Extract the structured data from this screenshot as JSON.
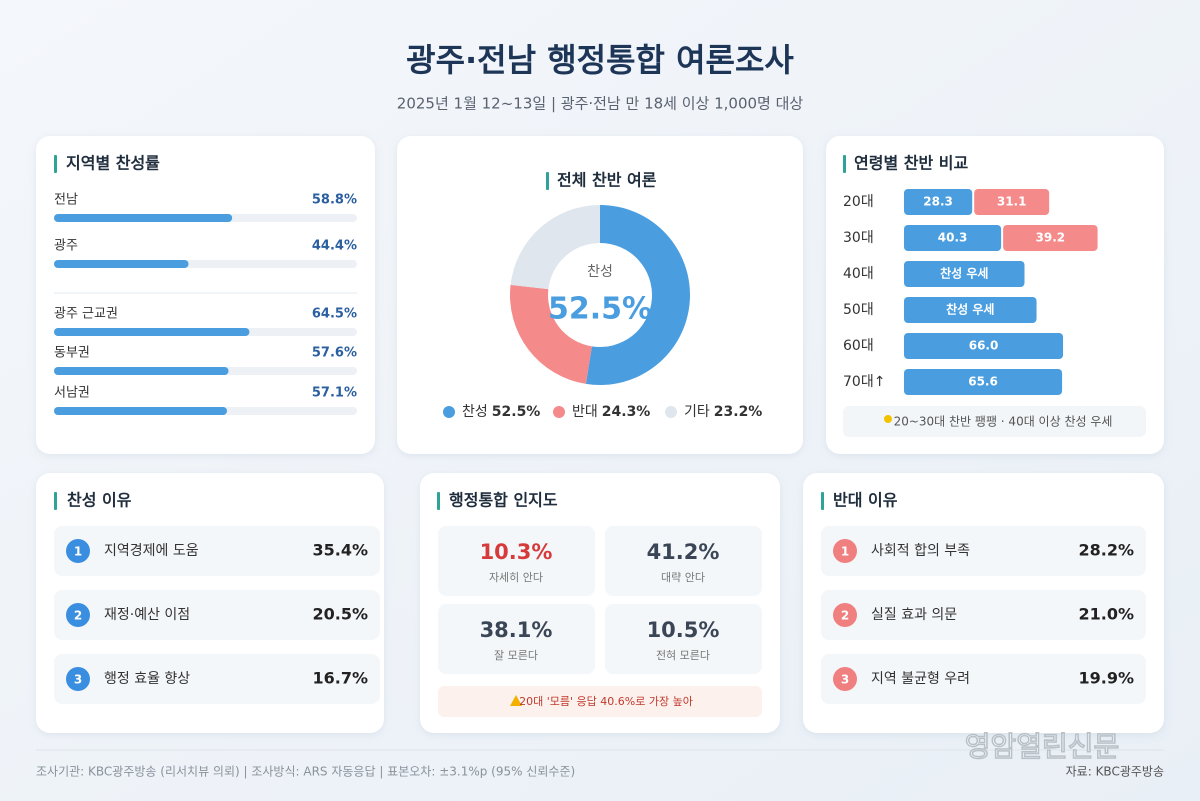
{
  "header": {
    "title": "광주·전남 행정통합 여론조사",
    "subtitle": "2025년 1월 12~13일 | 광주·전남 만 18세 이상 1,000명 대상"
  },
  "chart_data": [
    {
      "type": "hbar",
      "title": "지역별 찬성률",
      "categories": [
        "전남",
        "광주",
        "광주 근교권",
        "동부권",
        "서남권"
      ],
      "values": [
        58.8,
        44.4,
        64.5,
        57.6,
        57.1
      ],
      "value_labels": [
        "58.8%",
        "44.4%",
        "64.5%",
        "57.6%",
        "57.1%"
      ],
      "xlim": [
        0,
        100
      ],
      "color": "#4a9ee0"
    },
    {
      "type": "donut",
      "title": "전체 찬반 여론",
      "categories": [
        "찬성",
        "반대",
        "기타"
      ],
      "values": [
        52.5,
        24.3,
        23.2
      ],
      "value_labels": [
        "52.5%",
        "24.3%",
        "23.2%"
      ],
      "colors": [
        "#4a9ee0",
        "#f58a8a",
        "#dfe6ee"
      ]
    },
    {
      "type": "agebar",
      "title": "연령별 찬반 비교",
      "categories": [
        "20대",
        "30대",
        "40대",
        "50대",
        "60대",
        "70대↑"
      ],
      "series": [
        {
          "color": "#4a9ee0",
          "values": [
            28.3,
            40.3,
            50,
            55,
            66.0,
            65.6
          ],
          "value_labels": [
            "28.3",
            "40.3",
            "찬성 우세",
            "찬성 우세",
            "66.0",
            "65.6"
          ]
        },
        {
          "color": "#f58a8a",
          "values": [
            31.1,
            39.2,
            null,
            null,
            null,
            null
          ],
          "value_labels": [
            "31.1",
            "39.2",
            null,
            null,
            null,
            null
          ]
        }
      ],
      "xlim": [
        0,
        100
      ],
      "note": "20~30대 찬반 팽팽 · 40대 이상 찬성 우세"
    }
  ],
  "support_reasons": {
    "title": "찬성 이유",
    "items": [
      {
        "rank": 1,
        "label": "지역경제에 도움",
        "value": "35.4%"
      },
      {
        "rank": 2,
        "label": "재정·예산 이점",
        "value": "20.5%"
      },
      {
        "rank": 3,
        "label": "행정 효율 향상",
        "value": "16.7%"
      }
    ]
  },
  "awareness": {
    "title": "행정통합 인지도",
    "items": [
      {
        "value": "10.3%",
        "label": "자세히 안다"
      },
      {
        "value": "41.2%",
        "label": "대략 안다"
      },
      {
        "value": "38.1%",
        "label": "잘 모른다"
      },
      {
        "value": "10.5%",
        "label": "전혀 모른다"
      }
    ],
    "note": "20대 '모름' 응답 40.6%로 가장 높아"
  },
  "oppose_reasons": {
    "title": "반대 이유",
    "items": [
      {
        "rank": 1,
        "label": "사회적 합의 부족",
        "value": "28.2%"
      },
      {
        "rank": 2,
        "label": "실질 효과 의문",
        "value": "21.0%"
      },
      {
        "rank": 3,
        "label": "지역 불균형 우려",
        "value": "19.9%"
      }
    ]
  },
  "footer": {
    "method": "조사기관: KBC광주방송 (리서치뷰 의뢰) | 조사방식: ARS 자동응답 | 표본오차: ±3.1%p (95% 신뢰수준)",
    "source": "자료: KBC광주방송",
    "watermark": "영암열린신문"
  }
}
